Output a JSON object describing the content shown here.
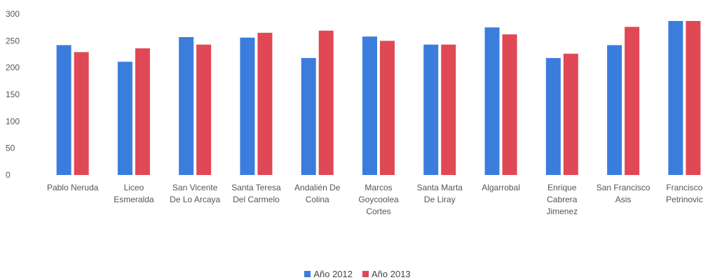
{
  "chart_data": {
    "type": "bar",
    "title": "",
    "xlabel": "",
    "ylabel": "",
    "ylim": [
      0,
      300
    ],
    "y_ticks": [
      "0",
      "50",
      "100",
      "150",
      "200",
      "250",
      "300"
    ],
    "grid": false,
    "legend_position": "bottom",
    "categories": [
      [
        "Pablo Neruda"
      ],
      [
        "Liceo",
        "Esmeralda"
      ],
      [
        "San Vicente",
        "De Lo Arcaya"
      ],
      [
        "Santa Teresa",
        "Del Carmelo"
      ],
      [
        "Andalién De",
        "Colina"
      ],
      [
        "Marcos",
        "Goycoolea",
        "Cortes"
      ],
      [
        "Santa Marta",
        "De Liray"
      ],
      [
        "Algarrobal"
      ],
      [
        "Enrique",
        "Cabrera",
        "Jimenez"
      ],
      [
        "San Francisco",
        "Asis"
      ],
      [
        "Francisco",
        "Petrinovic"
      ]
    ],
    "series": [
      {
        "name": "Año 2012",
        "color": "#3b7ddd",
        "values": [
          242,
          211,
          257,
          256,
          218,
          258,
          243,
          275,
          218,
          242,
          287
        ]
      },
      {
        "name": "Año 2013",
        "color": "#e04855",
        "values": [
          229,
          236,
          243,
          265,
          269,
          250,
          243,
          262,
          226,
          276,
          287
        ]
      }
    ]
  }
}
